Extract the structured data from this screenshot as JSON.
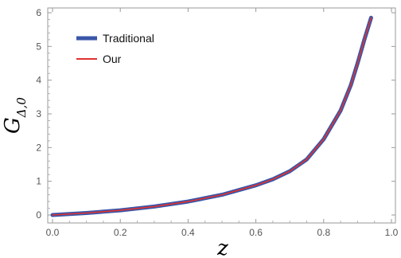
{
  "chart_data": {
    "type": "line",
    "xlabel": "z",
    "ylabel": "G",
    "ylabel_subscript": "Δ,0",
    "xlim": [
      0.0,
      1.0
    ],
    "ylim": [
      0,
      6
    ],
    "x_ticks": [
      "0.0",
      "0.2",
      "0.4",
      "0.6",
      "0.8",
      "1.0"
    ],
    "y_ticks": [
      "0",
      "1",
      "2",
      "3",
      "4",
      "5",
      "6"
    ],
    "legend_position": "top-left",
    "grid": false,
    "series": [
      {
        "name": "Traditional",
        "color": "#3a56a8",
        "x": [
          0.0,
          0.1,
          0.2,
          0.3,
          0.4,
          0.5,
          0.6,
          0.65,
          0.7,
          0.75,
          0.8,
          0.85,
          0.88,
          0.9,
          0.92,
          0.94
        ],
        "y": [
          0.0,
          0.06,
          0.14,
          0.25,
          0.4,
          0.6,
          0.88,
          1.06,
          1.3,
          1.65,
          2.25,
          3.1,
          3.85,
          4.5,
          5.2,
          5.85
        ]
      },
      {
        "name": "Our",
        "color": "#e0322f",
        "x": [
          0.0,
          0.1,
          0.2,
          0.3,
          0.4,
          0.5,
          0.6,
          0.65,
          0.7,
          0.75,
          0.8,
          0.85,
          0.88,
          0.9,
          0.92,
          0.94
        ],
        "y": [
          0.0,
          0.06,
          0.14,
          0.25,
          0.4,
          0.6,
          0.88,
          1.06,
          1.3,
          1.65,
          2.25,
          3.1,
          3.85,
          4.5,
          5.2,
          5.85
        ]
      }
    ]
  }
}
